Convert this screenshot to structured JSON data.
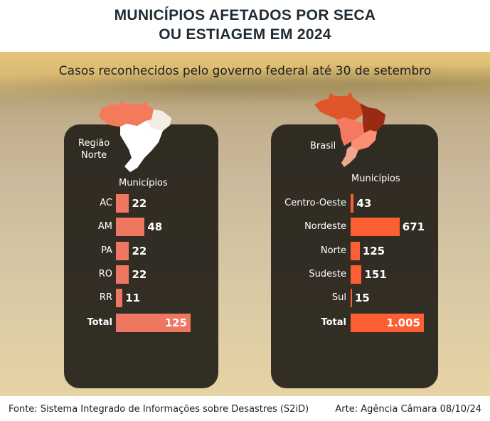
{
  "title": [
    "MUNICÍPIOS AFETADOS POR SECA",
    "OU ESTIAGEM EM 2024"
  ],
  "subtitle": "Casos reconhecidos pelo governo federal até 30 de setembro",
  "footer": {
    "source": "Fonte: Sistema Integrado de Informações sobre Desastres (S2iD)",
    "credit": "Arte: Agência Câmara 08/10/24"
  },
  "colors": {
    "left_bar": "#ef7660",
    "right_bar": "#fd5f33"
  },
  "chart_data": [
    {
      "type": "bar",
      "orientation": "horizontal",
      "title": "Região Norte",
      "map_label": [
        "Região",
        "Norte"
      ],
      "header": "Municípios",
      "categories": [
        "AC",
        "AM",
        "PA",
        "RO",
        "RR"
      ],
      "values": [
        22,
        48,
        22,
        22,
        11
      ],
      "total_label": "Total",
      "total": 125,
      "total_display": "125"
    },
    {
      "type": "bar",
      "orientation": "horizontal",
      "title": "Brasil",
      "map_label": [
        "Brasil"
      ],
      "header": "Municípios",
      "categories": [
        "Centro-Oeste",
        "Nordeste",
        "Norte",
        "Sudeste",
        "Sul"
      ],
      "values": [
        43,
        671,
        125,
        151,
        15
      ],
      "total_label": "Total",
      "total": 1005,
      "total_display": "1.005"
    }
  ]
}
